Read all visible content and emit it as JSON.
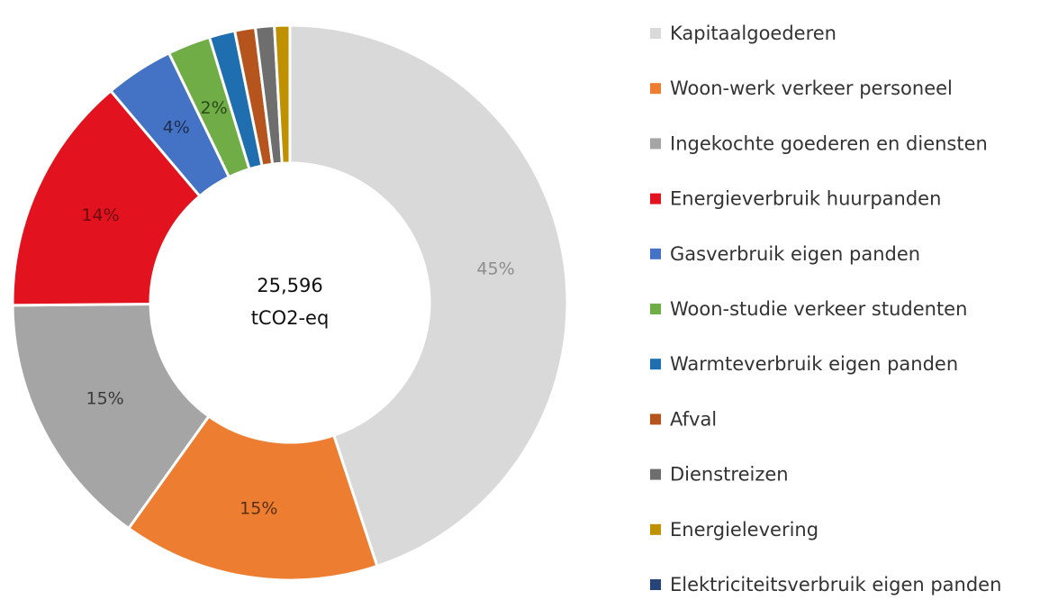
{
  "chart_data": {
    "type": "pie",
    "donut": true,
    "center_label": [
      "25,596",
      "tCO2-eq"
    ],
    "legend_position": "right",
    "series": [
      {
        "name": "Kapitaalgoederen",
        "value": 45,
        "label": "45%",
        "color": "#d9d9d9",
        "label_color": "#8c8c8c"
      },
      {
        "name": "Woon-werk verkeer personeel",
        "value": 15,
        "label": "15%",
        "color": "#ed7d31",
        "label_color": "#5a3010"
      },
      {
        "name": "Ingekochte goederen en diensten",
        "value": 15,
        "label": "15%",
        "color": "#a5a5a5",
        "label_color": "#3a3a3a"
      },
      {
        "name": "Energieverbruik huurpanden",
        "value": 14,
        "label": "14%",
        "color": "#e2131e",
        "label_color": "#6b0a0e"
      },
      {
        "name": "Gasverbruik eigen panden",
        "value": 4,
        "label": "4%",
        "color": "#4472c4",
        "label_color": "#1f2d50"
      },
      {
        "name": "Woon-studie verkeer studenten",
        "value": 2.5,
        "label": "2%",
        "color": "#70ad47",
        "label_color": "#2a4a18"
      },
      {
        "name": "Warmteverbruik eigen panden",
        "value": 1.5,
        "label": "",
        "color": "#1f6fb0",
        "label_color": "#ffffff"
      },
      {
        "name": "Afval",
        "value": 1.2,
        "label": "",
        "color": "#b5541c",
        "label_color": "#ffffff"
      },
      {
        "name": "Dienstreizen",
        "value": 1.1,
        "label": "",
        "color": "#6e6e6e",
        "label_color": "#ffffff"
      },
      {
        "name": "Energielevering",
        "value": 0.9,
        "label": "",
        "color": "#bf9000",
        "label_color": "#ffffff"
      },
      {
        "name": "Elektriciteitsverbruik eigen panden",
        "value": 0,
        "label": "",
        "color": "#264478",
        "label_color": "#ffffff"
      }
    ]
  }
}
